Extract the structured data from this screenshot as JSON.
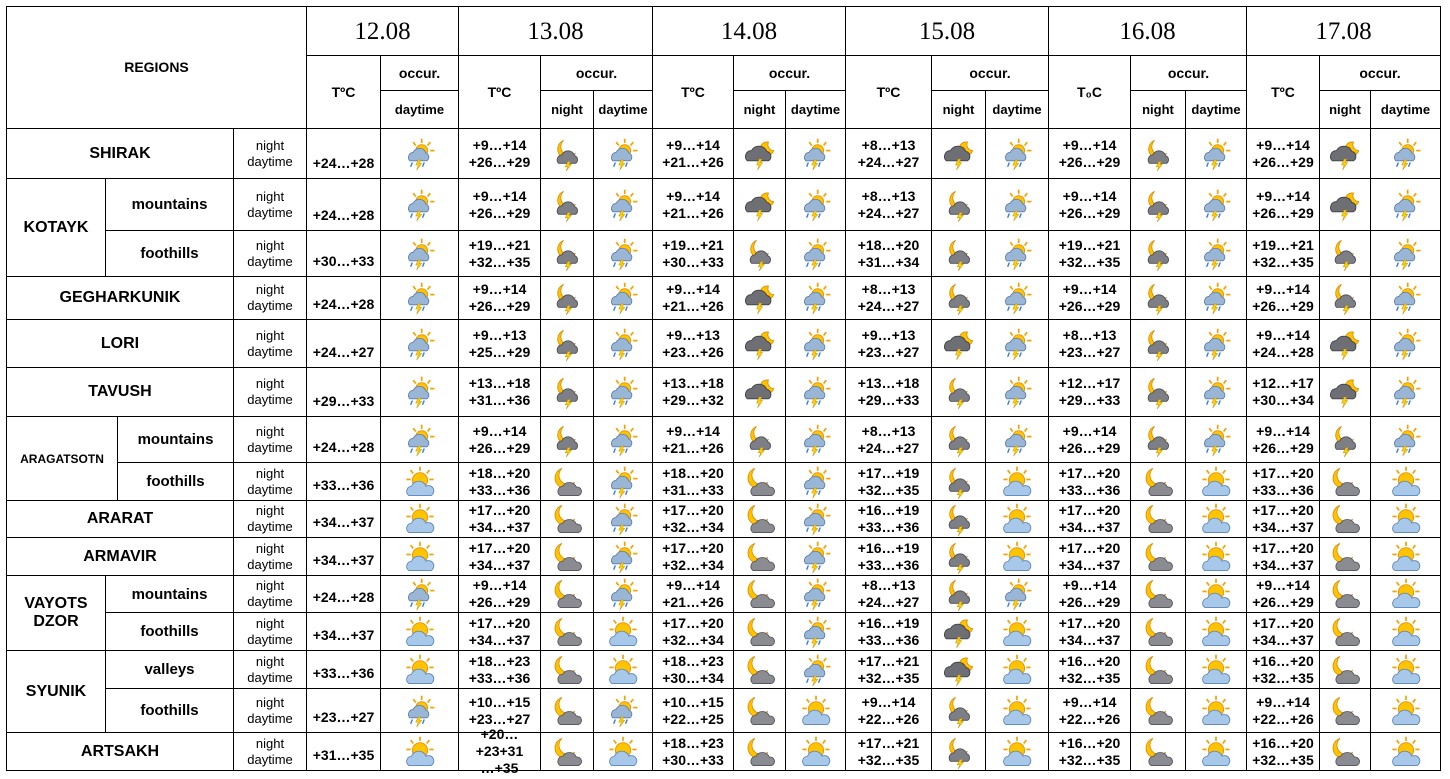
{
  "header": {
    "regions": "REGIONS",
    "days": [
      {
        "date": "12.08",
        "t": "TºC",
        "occur": "occur.",
        "periods": [
          "daytime"
        ]
      },
      {
        "date": "13.08",
        "t": "TºC",
        "occur": "occur.",
        "periods": [
          "night",
          "daytime"
        ]
      },
      {
        "date": "14.08",
        "t": "TºC",
        "occur": "occur.",
        "periods": [
          "night",
          "daytime"
        ]
      },
      {
        "date": "15.08",
        "t": "TºC",
        "occur": "occur.",
        "periods": [
          "night",
          "daytime"
        ]
      },
      {
        "date": "16.08",
        "t": "T₀C",
        "occur": "occur.",
        "periods": [
          "night",
          "daytime"
        ]
      },
      {
        "date": "17.08",
        "t": "TºC",
        "occur": "occur.",
        "periods": [
          "night",
          "daytime"
        ]
      }
    ]
  },
  "period_labels": [
    "night",
    "daytime"
  ],
  "regions": [
    {
      "name": "SHIRAK",
      "rows": [
        {
          "temps": [
            "+24…+28",
            [
              "+9…+14",
              "+26…+29"
            ],
            [
              "+9…+14",
              "+21…+26"
            ],
            [
              "+8…+13",
              "+24…+27"
            ],
            [
              "+9…+14",
              "+26…+29"
            ],
            [
              "+9…+14",
              "+26…+29"
            ]
          ]
        }
      ]
    },
    {
      "name": "KOTAYK",
      "rows": [
        {
          "sub": "mountains",
          "temps": [
            "+24…+28",
            [
              "+9…+14",
              "+26…+29"
            ],
            [
              "+9…+14",
              "+21…+26"
            ],
            [
              "+8…+13",
              "+24…+27"
            ],
            [
              "+9…+14",
              "+26…+29"
            ],
            [
              "+9…+14",
              "+26…+29"
            ]
          ]
        },
        {
          "sub": "foothills",
          "temps": [
            "+30…+33",
            [
              "+19…+21",
              "+32…+35"
            ],
            [
              "+19…+21",
              "+30…+33"
            ],
            [
              "+18…+20",
              "+31…+34"
            ],
            [
              "+19…+21",
              "+32…+35"
            ],
            [
              "+19…+21",
              "+32…+35"
            ]
          ]
        }
      ]
    },
    {
      "name": "GEGHARKUNIK",
      "rows": [
        {
          "temps": [
            "+24…+28",
            [
              "+9…+14",
              "+26…+29"
            ],
            [
              "+9…+14",
              "+21…+26"
            ],
            [
              "+8…+13",
              "+24…+27"
            ],
            [
              "+9…+14",
              "+26…+29"
            ],
            [
              "+9…+14",
              "+26…+29"
            ]
          ]
        }
      ]
    },
    {
      "name": "LORI",
      "rows": [
        {
          "temps": [
            "+24…+27",
            [
              "+9…+13",
              "+25…+29"
            ],
            [
              "+9…+13",
              "+23…+26"
            ],
            [
              "+9…+13",
              "+23…+27"
            ],
            [
              "+8…+13",
              "+23…+27"
            ],
            [
              "+9…+14",
              "+24…+28"
            ]
          ]
        }
      ]
    },
    {
      "name": "TAVUSH",
      "rows": [
        {
          "temps": [
            "+29…+33",
            [
              "+13…+18",
              "+31…+36"
            ],
            [
              "+13…+18",
              "+29…+32"
            ],
            [
              "+13…+18",
              "+29…+33"
            ],
            [
              "+12…+17",
              "+29…+33"
            ],
            [
              "+12…+17",
              "+30…+34"
            ]
          ]
        }
      ]
    },
    {
      "name": "ARAGATSOTN",
      "rows": [
        {
          "sub": "mountains",
          "temps": [
            "+24…+28",
            [
              "+9…+14",
              "+26…+29"
            ],
            [
              "+9…+14",
              "+21…+26"
            ],
            [
              "+8…+13",
              "+24…+27"
            ],
            [
              "+9…+14",
              "+26…+29"
            ],
            [
              "+9…+14",
              "+26…+29"
            ]
          ]
        },
        {
          "sub": "foothills",
          "temps": [
            "+33…+36",
            [
              "+18…+20",
              "+33…+36"
            ],
            [
              "+18…+20",
              "+31…+33"
            ],
            [
              "+17…+19",
              "+32…+35"
            ],
            [
              "+17…+20",
              "+33…+36"
            ],
            [
              "+17…+20",
              "+33…+36"
            ]
          ]
        }
      ]
    },
    {
      "name": "ARARAT",
      "rows": [
        {
          "temps": [
            "+34…+37",
            [
              "+17…+20",
              "+34…+37"
            ],
            [
              "+17…+20",
              "+32…+34"
            ],
            [
              "+16…+19",
              "+33…+36"
            ],
            [
              "+17…+20",
              "+34…+37"
            ],
            [
              "+17…+20",
              "+34…+37"
            ]
          ]
        }
      ]
    },
    {
      "name": "ARMAVIR",
      "rows": [
        {
          "temps": [
            "+34…+37",
            [
              "+17…+20",
              "+34…+37"
            ],
            [
              "+17…+20",
              "+32…+34"
            ],
            [
              "+16…+19",
              "+33…+36"
            ],
            [
              "+17…+20",
              "+34…+37"
            ],
            [
              "+17…+20",
              "+34…+37"
            ]
          ]
        }
      ]
    },
    {
      "name": "VAYOTS DZOR",
      "rows": [
        {
          "sub": "mountains",
          "temps": [
            "+24…+28",
            [
              "+9…+14",
              "+26…+29"
            ],
            [
              "+9…+14",
              "+21…+26"
            ],
            [
              "+8…+13",
              "+24…+27"
            ],
            [
              "+9…+14",
              "+26…+29"
            ],
            [
              "+9…+14",
              "+26…+29"
            ]
          ]
        },
        {
          "sub": "foothills",
          "temps": [
            "+34…+37",
            [
              "+17…+20",
              "+34…+37"
            ],
            [
              "+17…+20",
              "+32…+34"
            ],
            [
              "+16…+19",
              "+33…+36"
            ],
            [
              "+17…+20",
              "+34…+37"
            ],
            [
              "+17…+20",
              "+34…+37"
            ]
          ]
        }
      ]
    },
    {
      "name": "SYUNIK",
      "rows": [
        {
          "sub": "valleys",
          "temps": [
            "+33…+36",
            [
              "+18…+23",
              "+33…+36"
            ],
            [
              "+18…+23",
              "+30…+34"
            ],
            [
              "+17…+21",
              "+32…+35"
            ],
            [
              "+16…+20",
              "+32…+35"
            ],
            [
              "+16…+20",
              "+32…+35"
            ]
          ]
        },
        {
          "sub": "foothills",
          "temps": [
            "+23…+27",
            [
              "+10…+15",
              "+23…+27"
            ],
            [
              "+10…+15",
              "+22…+25"
            ],
            [
              "+9…+14",
              "+22…+26"
            ],
            [
              "+9…+14",
              "+22…+26"
            ],
            [
              "+9…+14",
              "+22…+26"
            ]
          ]
        }
      ]
    },
    {
      "name": "ARTSAKH",
      "rows": [
        {
          "temps": [
            "+31…+35",
            [
              "+20…+23+31",
              "…+35"
            ],
            [
              "+18…+23",
              "+30…+33"
            ],
            [
              "+17…+21",
              "+32…+35"
            ],
            [
              "+16…+20",
              "+32…+35"
            ],
            [
              "+16…+20",
              "+32…+35"
            ]
          ]
        }
      ]
    }
  ]
}
